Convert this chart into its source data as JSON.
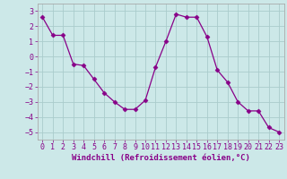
{
  "x": [
    0,
    1,
    2,
    3,
    4,
    5,
    6,
    7,
    8,
    9,
    10,
    11,
    12,
    13,
    14,
    15,
    16,
    17,
    18,
    19,
    20,
    21,
    22,
    23
  ],
  "y": [
    2.6,
    1.4,
    1.4,
    -0.5,
    -0.6,
    -1.5,
    -2.4,
    -3.0,
    -3.5,
    -3.5,
    -2.9,
    -0.7,
    1.0,
    2.8,
    2.6,
    2.6,
    1.3,
    -0.9,
    -1.7,
    -3.0,
    -3.6,
    -3.6,
    -4.7,
    -5.0
  ],
  "line_color": "#880088",
  "marker": "D",
  "marker_size": 2.5,
  "bg_color": "#cce8e8",
  "grid_color": "#aacccc",
  "xlabel": "Windchill (Refroidissement éolien,°C)",
  "xlabel_fontsize": 6.5,
  "tick_fontsize": 6.0,
  "ylim": [
    -5.5,
    3.5
  ],
  "yticks": [
    -5,
    -4,
    -3,
    -2,
    -1,
    0,
    1,
    2,
    3
  ],
  "xticks": [
    0,
    1,
    2,
    3,
    4,
    5,
    6,
    7,
    8,
    9,
    10,
    11,
    12,
    13,
    14,
    15,
    16,
    17,
    18,
    19,
    20,
    21,
    22,
    23
  ],
  "title_color": "#880088",
  "axes_color": "#880088",
  "spine_color": "#aaaaaa"
}
